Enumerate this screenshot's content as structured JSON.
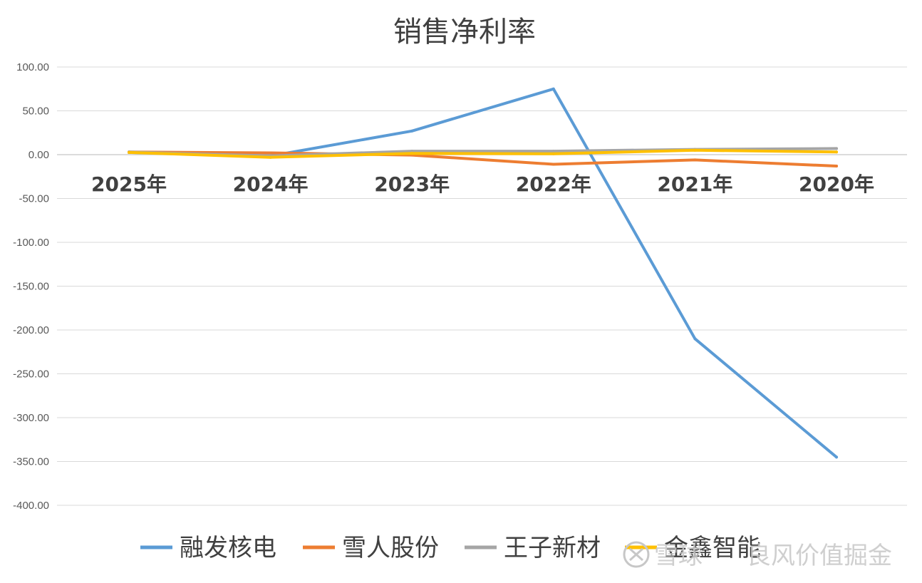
{
  "watermark": {
    "brand": "雪球",
    "author": "良风价值掘金"
  },
  "chart_data": {
    "type": "line",
    "title": "销售净利率",
    "xlabel": "",
    "ylabel": "",
    "categories": [
      "2025年",
      "2024年",
      "2023年",
      "2022年",
      "2021年",
      "2020年"
    ],
    "ylim": [
      -400,
      100
    ],
    "yticks": [
      100,
      50,
      0,
      -50,
      -100,
      -150,
      -200,
      -250,
      -300,
      -350,
      -400
    ],
    "ytick_labels": [
      "100.00",
      "50.00",
      "0.00",
      "-50.00",
      "-100.00",
      "-150.00",
      "-200.00",
      "-250.00",
      "-300.00",
      "-350.00",
      "-400.00"
    ],
    "grid": true,
    "legend_position": "bottom",
    "series": [
      {
        "name": "融发核电",
        "color": "#5b9bd5",
        "values": [
          2.5,
          -1.5,
          27,
          75,
          -210,
          -345
        ]
      },
      {
        "name": "雪人股份",
        "color": "#ed7d31",
        "values": [
          3,
          2,
          -0.5,
          -11,
          -6,
          -13
        ]
      },
      {
        "name": "王子新材",
        "color": "#a5a5a5",
        "values": [
          3,
          -1.5,
          4,
          4,
          6,
          7
        ]
      },
      {
        "name": "金鑫智能",
        "color": "#ffc000",
        "values": [
          2.5,
          -3,
          1.5,
          1,
          5,
          3
        ]
      }
    ]
  }
}
